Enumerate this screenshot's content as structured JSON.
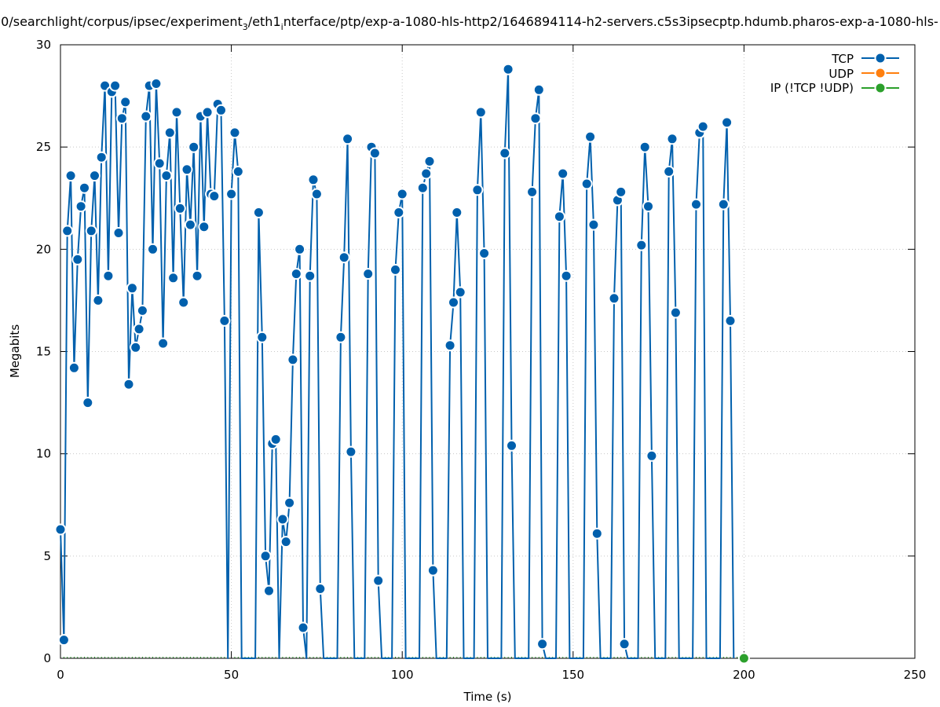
{
  "chart_data": {
    "type": "line",
    "title": "0/searchlight/corpus/ipsec/experiment_3/eth1_interface/ptp/exp-a-1080-hls-http2/1646894114-h2-servers.c5s3ipsecptp.hdumb.pharos-exp-a-1080-hls-",
    "title_parts": {
      "a": "0/searchlight/corpus/ipsec/experiment",
      "a_sub": "3",
      "b": "/eth1",
      "b_sub": "i",
      "c": "nterface/ptp/exp-a-1080-hls-http2/1646894114-h2-servers.c5s3ipsecptp.hdumb.pharos-exp-a-1080-hls-"
    },
    "xlabel": "Time (s)",
    "ylabel": "Megabits",
    "xlim": [
      0,
      250
    ],
    "ylim": [
      0,
      30
    ],
    "xticks": [
      0,
      50,
      100,
      150,
      200,
      250
    ],
    "yticks": [
      0,
      5,
      10,
      15,
      20,
      25,
      30
    ],
    "grid": true,
    "legend_position": "top-right",
    "series": [
      {
        "name": "TCP",
        "color": "#0060ad",
        "points": [
          [
            0,
            6.3
          ],
          [
            1,
            0.9
          ],
          [
            2,
            20.9
          ],
          [
            3,
            23.6
          ],
          [
            4,
            14.2
          ],
          [
            5,
            19.5
          ],
          [
            6,
            22.1
          ],
          [
            7,
            23.0
          ],
          [
            8,
            12.5
          ],
          [
            9,
            20.9
          ],
          [
            10,
            23.6
          ],
          [
            11,
            17.5
          ],
          [
            12,
            24.5
          ],
          [
            13,
            28.0
          ],
          [
            14,
            18.7
          ],
          [
            15,
            27.7
          ],
          [
            16,
            28.0
          ],
          [
            17,
            20.8
          ],
          [
            18,
            26.4
          ],
          [
            19,
            27.2
          ],
          [
            20,
            13.4
          ],
          [
            21,
            18.1
          ],
          [
            22,
            15.2
          ],
          [
            23,
            16.1
          ],
          [
            24,
            17.0
          ],
          [
            25,
            26.5
          ],
          [
            26,
            28.0
          ],
          [
            27,
            20.0
          ],
          [
            28,
            28.1
          ],
          [
            29,
            24.2
          ],
          [
            30,
            15.4
          ],
          [
            31,
            23.6
          ],
          [
            32,
            25.7
          ],
          [
            33,
            18.6
          ],
          [
            34,
            26.7
          ],
          [
            35,
            22.0
          ],
          [
            36,
            17.4
          ],
          [
            37,
            23.9
          ],
          [
            38,
            21.2
          ],
          [
            39,
            25.0
          ],
          [
            40,
            18.7
          ],
          [
            41,
            26.5
          ],
          [
            42,
            21.1
          ],
          [
            43,
            26.7
          ],
          [
            44,
            22.7
          ],
          [
            45,
            22.6
          ],
          [
            46,
            27.1
          ],
          [
            47,
            26.8
          ],
          [
            48,
            16.5
          ],
          [
            49,
            0
          ],
          [
            50,
            22.7
          ],
          [
            51,
            25.7
          ],
          [
            52,
            23.8
          ],
          [
            53,
            0
          ],
          [
            57,
            0
          ],
          [
            58,
            21.8
          ],
          [
            59,
            15.7
          ],
          [
            60,
            5.0
          ],
          [
            61,
            3.3
          ],
          [
            62,
            10.5
          ],
          [
            63,
            10.7
          ],
          [
            64,
            0
          ],
          [
            65,
            6.8
          ],
          [
            66,
            5.7
          ],
          [
            67,
            7.6
          ],
          [
            68,
            14.6
          ],
          [
            69,
            18.8
          ],
          [
            70,
            20.0
          ],
          [
            71,
            1.5
          ],
          [
            72,
            0
          ],
          [
            73,
            18.7
          ],
          [
            74,
            23.4
          ],
          [
            75,
            22.7
          ],
          [
            76,
            3.4
          ],
          [
            77,
            0
          ],
          [
            81,
            0
          ],
          [
            82,
            15.7
          ],
          [
            83,
            19.6
          ],
          [
            84,
            25.4
          ],
          [
            85,
            10.1
          ],
          [
            86,
            0
          ],
          [
            89,
            0
          ],
          [
            90,
            18.8
          ],
          [
            91,
            25.0
          ],
          [
            92,
            24.7
          ],
          [
            93,
            3.8
          ],
          [
            94,
            0
          ],
          [
            97,
            0
          ],
          [
            98,
            19.0
          ],
          [
            99,
            21.8
          ],
          [
            100,
            22.7
          ],
          [
            101,
            0
          ],
          [
            105,
            0
          ],
          [
            106,
            23.0
          ],
          [
            107,
            23.7
          ],
          [
            108,
            24.3
          ],
          [
            109,
            4.3
          ],
          [
            110,
            0
          ],
          [
            113,
            0
          ],
          [
            114,
            15.3
          ],
          [
            115,
            17.4
          ],
          [
            116,
            21.8
          ],
          [
            117,
            17.9
          ],
          [
            118,
            0
          ],
          [
            121,
            0
          ],
          [
            122,
            22.9
          ],
          [
            123,
            26.7
          ],
          [
            124,
            19.8
          ],
          [
            125,
            0
          ],
          [
            129,
            0
          ],
          [
            130,
            24.7
          ],
          [
            131,
            28.8
          ],
          [
            132,
            10.4
          ],
          [
            133,
            0
          ],
          [
            137,
            0
          ],
          [
            138,
            22.8
          ],
          [
            139,
            26.4
          ],
          [
            140,
            27.8
          ],
          [
            141,
            0.7
          ],
          [
            142,
            0
          ],
          [
            145,
            0
          ],
          [
            146,
            21.6
          ],
          [
            147,
            23.7
          ],
          [
            148,
            18.7
          ],
          [
            149,
            0
          ],
          [
            153,
            0
          ],
          [
            154,
            23.2
          ],
          [
            155,
            25.5
          ],
          [
            156,
            21.2
          ],
          [
            157,
            6.1
          ],
          [
            158,
            0
          ],
          [
            161,
            0
          ],
          [
            162,
            17.6
          ],
          [
            163,
            22.4
          ],
          [
            164,
            22.8
          ],
          [
            165,
            0.7
          ],
          [
            166,
            0
          ],
          [
            169,
            0
          ],
          [
            170,
            20.2
          ],
          [
            171,
            25.0
          ],
          [
            172,
            22.1
          ],
          [
            173,
            9.9
          ],
          [
            174,
            0
          ],
          [
            177,
            0
          ],
          [
            178,
            23.8
          ],
          [
            179,
            25.4
          ],
          [
            180,
            16.9
          ],
          [
            181,
            0
          ],
          [
            185,
            0
          ],
          [
            186,
            22.2
          ],
          [
            187,
            25.7
          ],
          [
            188,
            26.0
          ],
          [
            189,
            0
          ],
          [
            193,
            0
          ],
          [
            194,
            22.2
          ],
          [
            195,
            26.2
          ],
          [
            196,
            16.5
          ],
          [
            197,
            0
          ]
        ],
        "marked": [
          [
            0,
            6.3
          ],
          [
            1,
            0.9
          ],
          [
            2,
            20.9
          ],
          [
            3,
            23.6
          ],
          [
            4,
            14.2
          ],
          [
            5,
            19.5
          ],
          [
            6,
            22.1
          ],
          [
            7,
            23.0
          ],
          [
            8,
            12.5
          ],
          [
            9,
            20.9
          ],
          [
            10,
            23.6
          ],
          [
            11,
            17.5
          ],
          [
            12,
            24.5
          ],
          [
            13,
            28.0
          ],
          [
            14,
            18.7
          ],
          [
            15,
            27.7
          ],
          [
            16,
            28.0
          ],
          [
            17,
            20.8
          ],
          [
            18,
            26.4
          ],
          [
            19,
            27.2
          ],
          [
            20,
            13.4
          ],
          [
            21,
            18.1
          ],
          [
            22,
            15.2
          ],
          [
            23,
            16.1
          ],
          [
            24,
            17.0
          ],
          [
            25,
            26.5
          ],
          [
            26,
            28.0
          ],
          [
            27,
            20.0
          ],
          [
            28,
            28.1
          ],
          [
            29,
            24.2
          ],
          [
            30,
            15.4
          ],
          [
            31,
            23.6
          ],
          [
            32,
            25.7
          ],
          [
            33,
            18.6
          ],
          [
            34,
            26.7
          ],
          [
            35,
            22.0
          ],
          [
            36,
            17.4
          ],
          [
            37,
            23.9
          ],
          [
            38,
            21.2
          ],
          [
            39,
            25.0
          ],
          [
            40,
            18.7
          ],
          [
            41,
            26.5
          ],
          [
            42,
            21.1
          ],
          [
            43,
            26.7
          ],
          [
            44,
            22.7
          ],
          [
            45,
            22.6
          ],
          [
            46,
            27.1
          ],
          [
            47,
            26.8
          ],
          [
            48,
            16.5
          ],
          [
            50,
            22.7
          ],
          [
            51,
            25.7
          ],
          [
            52,
            23.8
          ],
          [
            58,
            21.8
          ],
          [
            59,
            15.7
          ],
          [
            60,
            5.0
          ],
          [
            61,
            3.3
          ],
          [
            62,
            10.5
          ],
          [
            63,
            10.7
          ],
          [
            65,
            6.8
          ],
          [
            66,
            5.7
          ],
          [
            67,
            7.6
          ],
          [
            68,
            14.6
          ],
          [
            69,
            18.8
          ],
          [
            70,
            20.0
          ],
          [
            71,
            1.5
          ],
          [
            73,
            18.7
          ],
          [
            74,
            23.4
          ],
          [
            75,
            22.7
          ],
          [
            76,
            3.4
          ],
          [
            82,
            15.7
          ],
          [
            83,
            19.6
          ],
          [
            84,
            25.4
          ],
          [
            85,
            10.1
          ],
          [
            90,
            18.8
          ],
          [
            91,
            25.0
          ],
          [
            92,
            24.7
          ],
          [
            93,
            3.8
          ],
          [
            98,
            19.0
          ],
          [
            99,
            21.8
          ],
          [
            100,
            22.7
          ],
          [
            106,
            23.0
          ],
          [
            107,
            23.7
          ],
          [
            108,
            24.3
          ],
          [
            109,
            4.3
          ],
          [
            114,
            15.3
          ],
          [
            115,
            17.4
          ],
          [
            116,
            21.8
          ],
          [
            117,
            17.9
          ],
          [
            122,
            22.9
          ],
          [
            123,
            26.7
          ],
          [
            124,
            19.8
          ],
          [
            130,
            24.7
          ],
          [
            131,
            28.8
          ],
          [
            132,
            10.4
          ],
          [
            138,
            22.8
          ],
          [
            139,
            26.4
          ],
          [
            140,
            27.8
          ],
          [
            141,
            0.7
          ],
          [
            146,
            21.6
          ],
          [
            147,
            23.7
          ],
          [
            148,
            18.7
          ],
          [
            154,
            23.2
          ],
          [
            155,
            25.5
          ],
          [
            156,
            21.2
          ],
          [
            157,
            6.1
          ],
          [
            162,
            17.6
          ],
          [
            163,
            22.4
          ],
          [
            164,
            22.8
          ],
          [
            165,
            0.7
          ],
          [
            170,
            20.2
          ],
          [
            171,
            25.0
          ],
          [
            172,
            22.1
          ],
          [
            173,
            9.9
          ],
          [
            178,
            23.8
          ],
          [
            179,
            25.4
          ],
          [
            180,
            16.9
          ],
          [
            186,
            22.2
          ],
          [
            187,
            25.7
          ],
          [
            188,
            26.0
          ],
          [
            194,
            22.2
          ],
          [
            195,
            26.2
          ],
          [
            196,
            16.5
          ]
        ]
      },
      {
        "name": "UDP",
        "color": "#ff7f0e",
        "points": [],
        "marked": []
      },
      {
        "name": "IP (!TCP  !UDP)",
        "color": "#2ca02c",
        "points": [
          [
            200,
            0
          ]
        ],
        "marked": [
          [
            200,
            0
          ]
        ]
      }
    ]
  }
}
